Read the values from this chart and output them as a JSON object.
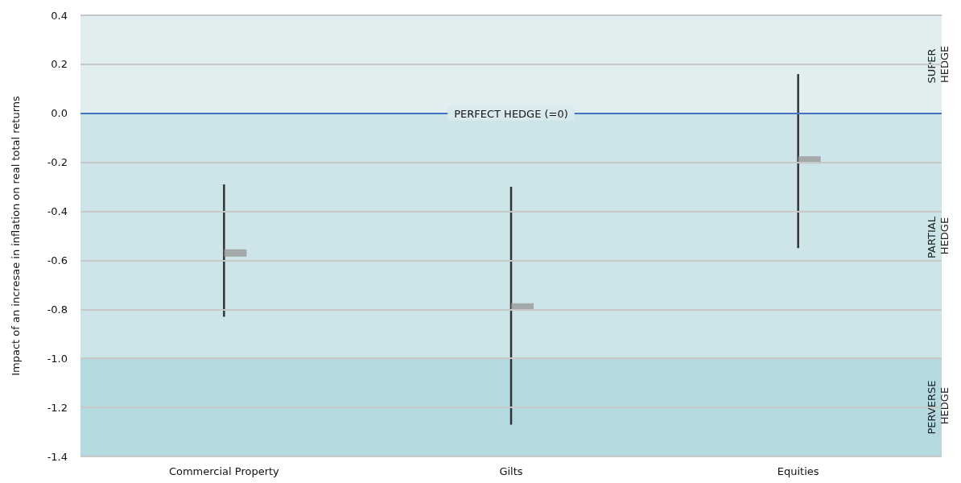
{
  "chart_data": {
    "type": "scatter",
    "ylabel": "Impact of an incresae in inflation on real total returns",
    "categories": [
      "Commercial Property",
      "Gilts",
      "Equities"
    ],
    "series": [
      {
        "color": "#999999",
        "values": [
          -0.57,
          -0.79,
          -0.19
        ],
        "errors": [
          [
            -0.83,
            -0.29
          ],
          [
            -1.27,
            -0.3
          ],
          [
            -0.55,
            0.16
          ]
        ]
      }
    ],
    "marker": "square",
    "ylim": [
      -1.4,
      0.4
    ],
    "yticks": [
      {
        "value": -1.4,
        "label": "-1.4"
      },
      {
        "value": -1.2,
        "label": "-1.2"
      },
      {
        "value": -1.0,
        "label": "-1.0"
      },
      {
        "value": -0.8,
        "label": "-0.8"
      },
      {
        "value": -0.6,
        "label": "-0.6"
      },
      {
        "value": -0.4,
        "label": "-0.4"
      },
      {
        "value": -0.2,
        "label": "-0.2"
      },
      {
        "value": 0,
        "label": "0.0"
      },
      {
        "value": 0.2,
        "label": "0.2"
      },
      {
        "value": 0.4,
        "label": "0.4"
      }
    ],
    "grid": "y",
    "ref_lines": [
      {
        "axis": "y",
        "value": 0,
        "label": "PERFECT HEDGE (=0)",
        "color": "#4472c4"
      }
    ],
    "bands": [
      {
        "axis": "y",
        "from": 0,
        "to": 0.4,
        "label": "SUPER HEDGE",
        "color": "#e1eef0"
      },
      {
        "axis": "y",
        "from": -1.0,
        "to": 0,
        "label": "PARTIAL HEDGE",
        "color": "#cde4e9"
      },
      {
        "axis": "y",
        "from": -1.4,
        "to": -1.0,
        "label": "PERVERSE HEDGE",
        "color": "#b4d9df"
      }
    ]
  }
}
